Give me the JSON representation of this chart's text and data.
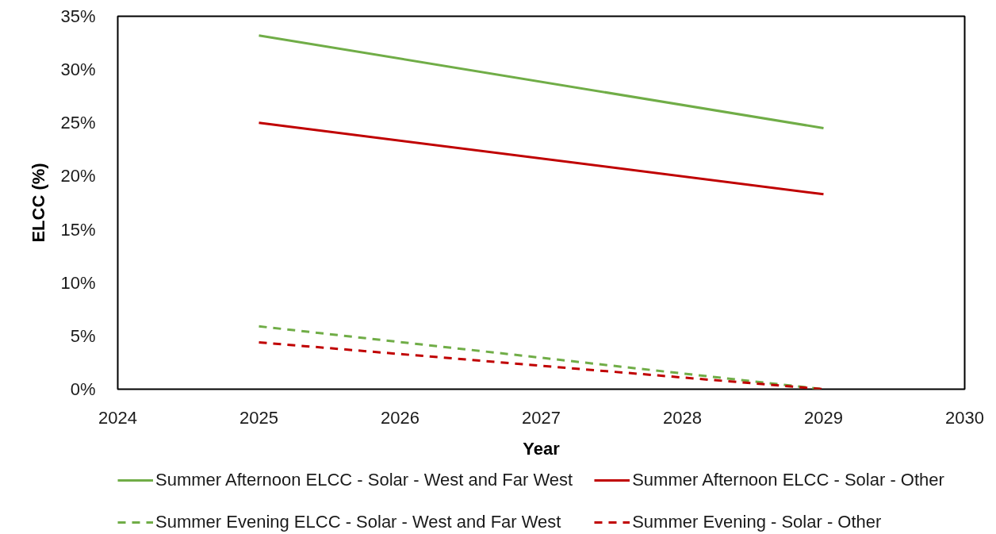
{
  "chart_data": {
    "type": "line",
    "xlabel": "Year",
    "ylabel": "ELCC (%)",
    "x": [
      2025,
      2029
    ],
    "series": [
      {
        "name": "Summer Afternoon ELCC - Solar - West and Far West",
        "color": "#70ad47",
        "line_style": "solid",
        "values": [
          33.2,
          24.5
        ]
      },
      {
        "name": "Summer Afternoon ELCC - Solar - Other",
        "color": "#c00000",
        "line_style": "solid",
        "values": [
          25.0,
          18.3
        ]
      },
      {
        "name": "Summer Evening ELCC - Solar - West and Far West",
        "color": "#70ad47",
        "line_style": "dashed",
        "values": [
          5.9,
          0
        ]
      },
      {
        "name": "Summer Evening - Solar - Other",
        "color": "#c00000",
        "line_style": "dashed",
        "values": [
          4.4,
          0
        ]
      }
    ],
    "xlim": [
      2024,
      2030
    ],
    "xticks": [
      2024,
      2025,
      2026,
      2027,
      2028,
      2029,
      2030
    ],
    "ylim": [
      0,
      35
    ],
    "yticks": [
      {
        "value": 0,
        "label": "0%"
      },
      {
        "value": 5,
        "label": "5%"
      },
      {
        "value": 10,
        "label": "10%"
      },
      {
        "value": 15,
        "label": "15%"
      },
      {
        "value": 20,
        "label": "20%"
      },
      {
        "value": 25,
        "label": "25%"
      },
      {
        "value": 30,
        "label": "30%"
      },
      {
        "value": 35,
        "label": "35%"
      }
    ],
    "grid": false,
    "legend": "bottom"
  }
}
